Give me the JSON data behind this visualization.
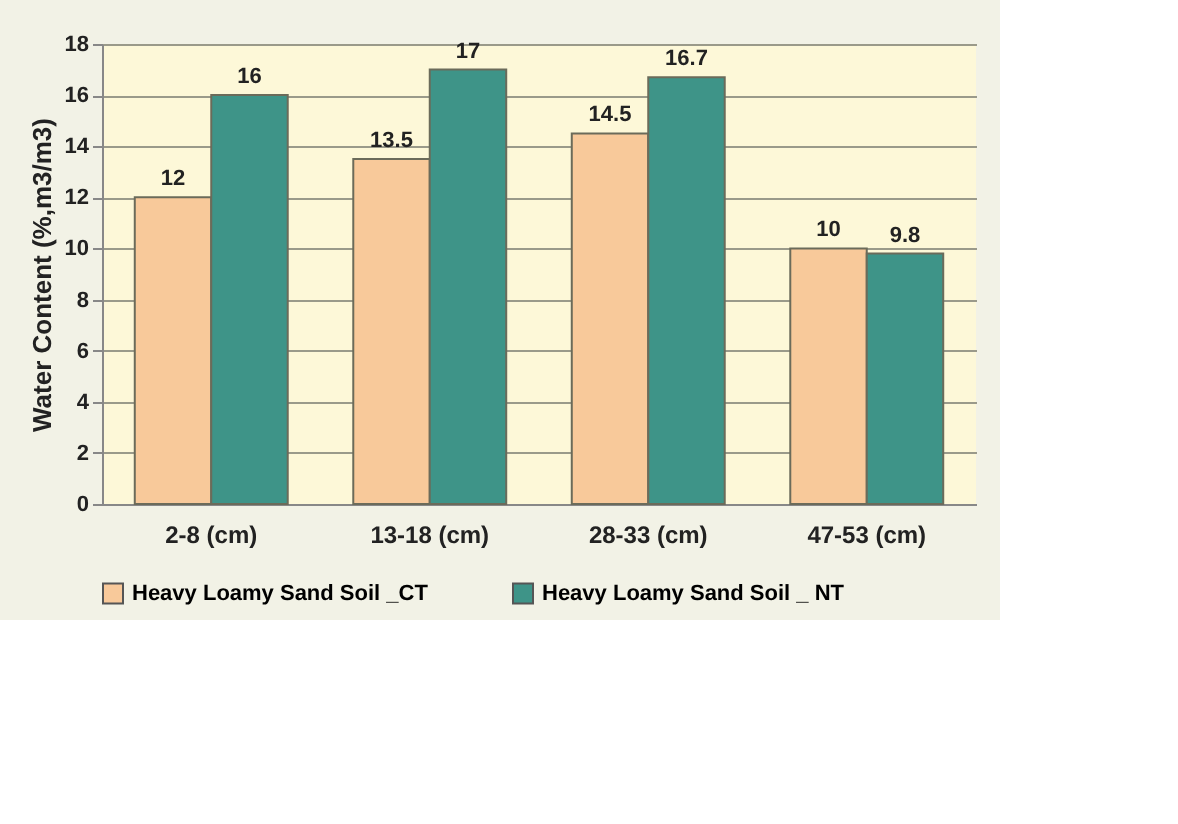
{
  "chart_data": {
    "type": "bar",
    "ylabel": "Water Content (%,m3/m3)",
    "categories": [
      "2-8 (cm)",
      "13-18 (cm)",
      "28-33 (cm)",
      "47-53 (cm)"
    ],
    "series": [
      {
        "name": "Heavy Loamy Sand Soil _CT",
        "color": "#f8c99a",
        "values": [
          12,
          13.5,
          14.5,
          10
        ]
      },
      {
        "name": "Heavy Loamy Sand Soil _ NT",
        "color": "#3e9488",
        "values": [
          16,
          17,
          16.7,
          9.8
        ]
      }
    ],
    "ylim": [
      0,
      18
    ],
    "yticks": [
      0,
      2,
      4,
      6,
      8,
      10,
      12,
      14,
      16,
      18
    ],
    "grid": "y",
    "legend": "bottom",
    "data_labels": true
  }
}
